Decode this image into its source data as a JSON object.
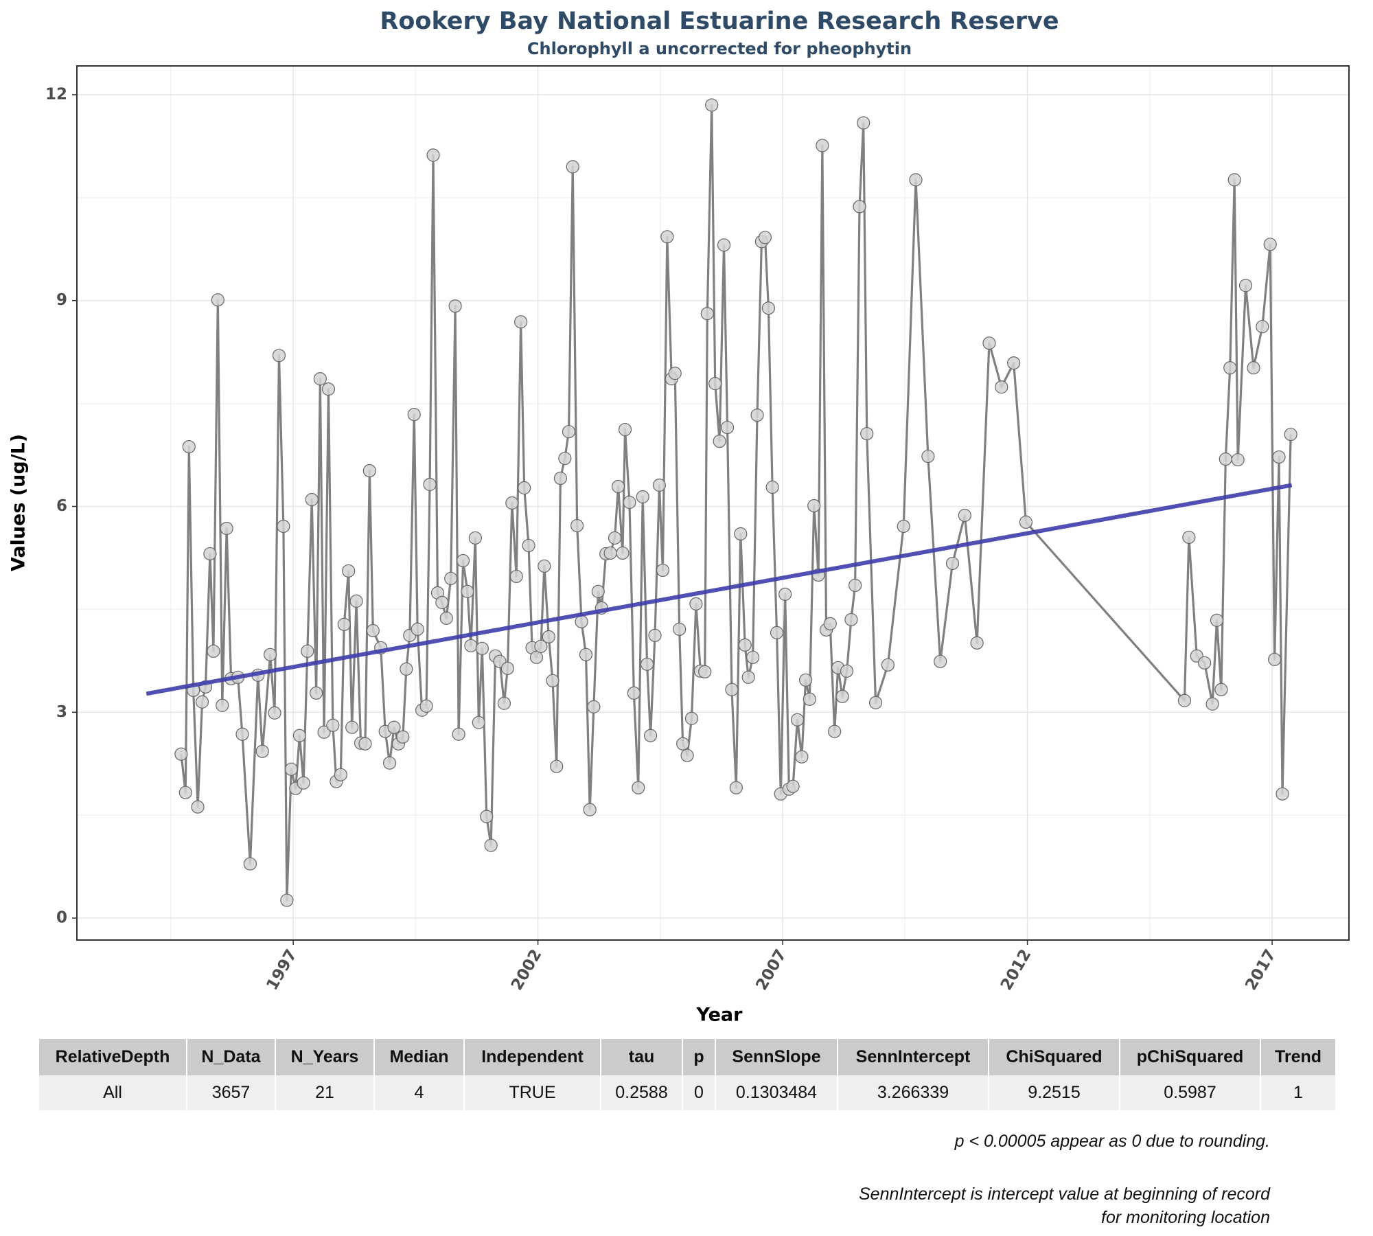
{
  "chart_data": {
    "type": "line",
    "title": "Rookery Bay National Estuarine Research Reserve",
    "subtitle": "Chlorophyll a uncorrected for pheophytin",
    "x_label": "Year",
    "y_label": "Values (ug/L)",
    "x": [
      1994.71,
      1994.8,
      1994.87,
      1994.96,
      1995.05,
      1995.14,
      1995.21,
      1995.3,
      1995.37,
      1995.46,
      1995.55,
      1995.64,
      1995.73,
      1995.87,
      1995.96,
      1996.12,
      1996.28,
      1996.37,
      1996.53,
      1996.62,
      1996.71,
      1996.8,
      1996.87,
      1996.96,
      1997.05,
      1997.13,
      1997.21,
      1997.29,
      1997.38,
      1997.47,
      1997.55,
      1997.63,
      1997.72,
      1997.81,
      1997.88,
      1997.97,
      1998.04,
      1998.13,
      1998.2,
      1998.29,
      1998.38,
      1998.47,
      1998.56,
      1998.63,
      1998.79,
      1998.88,
      1998.97,
      1999.06,
      1999.15,
      1999.24,
      1999.31,
      1999.38,
      1999.47,
      1999.54,
      1999.63,
      1999.72,
      1999.79,
      1999.86,
      1999.95,
      2000.04,
      2000.13,
      2000.22,
      2000.31,
      2000.38,
      2000.47,
      2000.56,
      2000.63,
      2000.72,
      2000.79,
      2000.86,
      2000.95,
      2001.04,
      2001.13,
      2001.22,
      2001.31,
      2001.38,
      2001.47,
      2001.56,
      2001.65,
      2001.72,
      2001.81,
      2001.88,
      2001.97,
      2002.06,
      2002.13,
      2002.22,
      2002.3,
      2002.38,
      2002.46,
      2002.55,
      2002.63,
      2002.71,
      2002.8,
      2002.89,
      2002.98,
      2003.06,
      2003.14,
      2003.23,
      2003.3,
      2003.39,
      2003.48,
      2003.57,
      2003.64,
      2003.73,
      2003.78,
      2003.87,
      2003.96,
      2004.05,
      2004.14,
      2004.23,
      2004.3,
      2004.39,
      2004.48,
      2004.55,
      2004.64,
      2004.73,
      2004.8,
      2004.89,
      2004.96,
      2005.05,
      2005.14,
      2005.23,
      2005.32,
      2005.41,
      2005.46,
      2005.55,
      2005.62,
      2005.71,
      2005.8,
      2005.87,
      2005.96,
      2006.05,
      2006.14,
      2006.23,
      2006.3,
      2006.39,
      2006.48,
      2006.57,
      2006.64,
      2006.71,
      2006.79,
      2006.88,
      2006.96,
      2007.05,
      2007.13,
      2007.21,
      2007.3,
      2007.39,
      2007.47,
      2007.55,
      2007.64,
      2007.73,
      2007.81,
      2007.89,
      2007.97,
      2008.06,
      2008.13,
      2008.22,
      2008.31,
      2008.4,
      2008.48,
      2008.57,
      2008.65,
      2008.72,
      2008.9,
      2009.15,
      2009.47,
      2009.72,
      2009.97,
      2010.22,
      2010.47,
      2010.72,
      2010.97,
      2011.22,
      2011.47,
      2011.72,
      2011.97,
      2015.21,
      2015.3,
      2015.46,
      2015.62,
      2015.78,
      2015.87,
      2015.96,
      2016.05,
      2016.14,
      2016.23,
      2016.3,
      2016.46,
      2016.62,
      2016.8,
      2016.96,
      2017.05,
      2017.14,
      2017.21,
      2017.38
    ],
    "values": [
      2.39,
      1.83,
      6.87,
      3.32,
      1.62,
      3.15,
      3.37,
      5.31,
      3.89,
      9.01,
      3.1,
      5.68,
      3.49,
      3.51,
      2.68,
      0.79,
      3.54,
      2.43,
      3.84,
      2.99,
      8.2,
      5.71,
      0.26,
      2.17,
      1.89,
      2.66,
      1.97,
      3.89,
      6.1,
      3.28,
      7.86,
      2.71,
      7.71,
      2.81,
      1.99,
      2.09,
      4.28,
      5.06,
      2.78,
      4.62,
      2.55,
      2.54,
      6.52,
      4.19,
      3.94,
      2.72,
      2.26,
      2.78,
      2.54,
      2.64,
      3.63,
      4.12,
      7.34,
      4.21,
      3.03,
      3.09,
      6.32,
      11.12,
      4.74,
      4.6,
      4.37,
      4.95,
      8.92,
      2.68,
      5.21,
      4.76,
      3.97,
      5.54,
      2.85,
      3.93,
      1.48,
      1.06,
      3.82,
      3.74,
      3.13,
      3.64,
      6.05,
      4.98,
      8.69,
      6.27,
      5.43,
      3.94,
      3.8,
      3.96,
      5.13,
      4.1,
      3.46,
      2.21,
      6.41,
      6.7,
      7.09,
      10.95,
      5.72,
      4.32,
      3.84,
      1.58,
      3.08,
      4.76,
      4.52,
      5.31,
      5.32,
      5.54,
      6.29,
      5.32,
      7.12,
      6.06,
      3.28,
      1.9,
      6.14,
      3.7,
      2.66,
      4.12,
      6.31,
      5.07,
      9.93,
      7.86,
      7.94,
      4.21,
      2.54,
      2.37,
      2.91,
      4.58,
      3.6,
      3.59,
      8.81,
      11.85,
      7.79,
      6.95,
      9.81,
      7.15,
      3.33,
      1.9,
      5.6,
      3.98,
      3.51,
      3.8,
      7.33,
      9.86,
      9.92,
      8.89,
      6.28,
      4.16,
      1.81,
      4.72,
      1.88,
      1.92,
      2.89,
      2.35,
      3.47,
      3.19,
      6.01,
      5.0,
      11.26,
      4.2,
      4.29,
      2.72,
      3.65,
      3.23,
      3.6,
      4.35,
      4.85,
      10.37,
      11.59,
      7.06,
      3.14,
      3.69,
      5.71,
      10.76,
      6.73,
      3.74,
      5.17,
      5.87,
      4.01,
      8.38,
      7.74,
      8.09,
      5.77,
      3.17,
      5.55,
      3.82,
      3.72,
      3.12,
      4.34,
      3.33,
      6.69,
      8.02,
      10.76,
      6.68,
      9.22,
      8.02,
      8.62,
      9.82,
      3.77,
      6.72,
      1.81,
      7.05
    ],
    "color": "#808080",
    "marker_color": "#d3d3d3",
    "trend": {
      "x": [
        1994.0,
        2017.4
      ],
      "values": [
        3.27,
        6.31
      ],
      "color": "#3c3cac"
    },
    "xlim": [
      1992.58,
      2018.57
    ],
    "ylim": [
      -0.32,
      12.42
    ],
    "xticks": [
      1997,
      2002,
      2007,
      2012,
      2017
    ],
    "yticks": [
      0,
      3,
      6,
      9,
      12
    ],
    "grid": true
  },
  "table": {
    "columns": [
      "RelativeDepth",
      "N_Data",
      "N_Years",
      "Median",
      "Independent",
      "tau",
      "p",
      "SennSlope",
      "SennIntercept",
      "ChiSquared",
      "pChiSquared",
      "Trend"
    ],
    "rows": [
      [
        "All",
        "3657",
        "21",
        "4",
        "TRUE",
        "0.2588",
        "0",
        "0.1303484",
        "3.266339",
        "9.2515",
        "0.5987",
        "1"
      ]
    ]
  },
  "notes": [
    "p < 0.00005 appear as 0 due to rounding.",
    "SennIntercept is intercept value at beginning of record for monitoring location"
  ]
}
